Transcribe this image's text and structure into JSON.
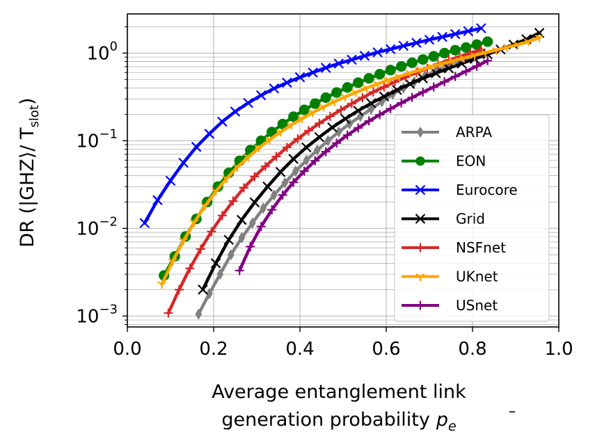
{
  "chart_data": {
    "type": "line",
    "xlabel_line1": "Average entanglement link",
    "xlabel_line2": "generation probability",
    "xlabel_symbol": "p",
    "xlabel_sub": "e",
    "ylabel_main": "DR (|GHZ⟩/ T",
    "ylabel_sub": "slot",
    "ylabel_close": ")",
    "y_scale": "log",
    "xlim": [
      0.0,
      1.0
    ],
    "ylim": [
      0.00075,
      2.8
    ],
    "x_ticks": [
      0.0,
      0.2,
      0.4,
      0.6,
      0.8,
      1.0
    ],
    "x_tick_labels": [
      "0.0",
      "0.2",
      "0.4",
      "0.6",
      "0.8",
      "1.0"
    ],
    "y_ticks": [
      0.001,
      0.01,
      0.1,
      1
    ],
    "y_tick_bases": [
      "10",
      "10",
      "10",
      "10"
    ],
    "y_tick_exps": [
      "−3",
      "−2",
      "−1",
      "0"
    ],
    "grid": true,
    "legend_position": "lower right",
    "series": [
      {
        "name": "ARPA",
        "color": "#808080",
        "marker": "diamond",
        "x": [
          0.165,
          0.19,
          0.215,
          0.24,
          0.265,
          0.29,
          0.315,
          0.34,
          0.365,
          0.39,
          0.415,
          0.44,
          0.465,
          0.49,
          0.515,
          0.54,
          0.565,
          0.59,
          0.615,
          0.64,
          0.665,
          0.69,
          0.715,
          0.74,
          0.765,
          0.79,
          0.815
        ],
        "y": [
          0.00105,
          0.0018,
          0.003,
          0.005,
          0.0078,
          0.0115,
          0.017,
          0.024,
          0.033,
          0.045,
          0.06,
          0.078,
          0.1,
          0.126,
          0.156,
          0.19,
          0.23,
          0.28,
          0.34,
          0.4,
          0.47,
          0.55,
          0.63,
          0.72,
          0.81,
          0.9,
          1.0
        ]
      },
      {
        "name": "EON",
        "color": "#008000",
        "marker": "circle",
        "x": [
          0.085,
          0.11,
          0.135,
          0.16,
          0.185,
          0.21,
          0.235,
          0.26,
          0.285,
          0.31,
          0.335,
          0.36,
          0.385,
          0.41,
          0.435,
          0.46,
          0.485,
          0.51,
          0.535,
          0.56,
          0.585,
          0.61,
          0.635,
          0.66,
          0.685,
          0.71,
          0.735,
          0.76,
          0.785,
          0.81,
          0.835
        ],
        "y": [
          0.0029,
          0.0048,
          0.0081,
          0.0128,
          0.02,
          0.03,
          0.043,
          0.059,
          0.078,
          0.1,
          0.126,
          0.155,
          0.188,
          0.225,
          0.265,
          0.31,
          0.355,
          0.405,
          0.46,
          0.515,
          0.575,
          0.64,
          0.705,
          0.775,
          0.845,
          0.92,
          1.0,
          1.08,
          1.16,
          1.25,
          1.35
        ]
      },
      {
        "name": "Eurocore",
        "color": "#0000ff",
        "marker": "x",
        "x": [
          0.04,
          0.07,
          0.1,
          0.13,
          0.16,
          0.19,
          0.22,
          0.25,
          0.28,
          0.31,
          0.34,
          0.37,
          0.4,
          0.43,
          0.46,
          0.49,
          0.52,
          0.55,
          0.58,
          0.61,
          0.64,
          0.67,
          0.7,
          0.73,
          0.76,
          0.79,
          0.82
        ],
        "y": [
          0.0115,
          0.021,
          0.035,
          0.056,
          0.085,
          0.12,
          0.165,
          0.215,
          0.27,
          0.33,
          0.395,
          0.46,
          0.53,
          0.6,
          0.68,
          0.76,
          0.84,
          0.93,
          1.02,
          1.11,
          1.21,
          1.31,
          1.42,
          1.53,
          1.65,
          1.78,
          1.92
        ]
      },
      {
        "name": "Grid",
        "color": "#000000",
        "marker": "x",
        "x": [
          0.175,
          0.205,
          0.235,
          0.265,
          0.295,
          0.325,
          0.355,
          0.385,
          0.415,
          0.445,
          0.475,
          0.505,
          0.535,
          0.565,
          0.595,
          0.625,
          0.655,
          0.685,
          0.715,
          0.745,
          0.775,
          0.805,
          0.835,
          0.865,
          0.895,
          0.925,
          0.955
        ],
        "y": [
          0.002,
          0.004,
          0.0074,
          0.0125,
          0.0198,
          0.03,
          0.044,
          0.062,
          0.084,
          0.11,
          0.142,
          0.178,
          0.22,
          0.268,
          0.32,
          0.38,
          0.445,
          0.515,
          0.59,
          0.67,
          0.76,
          0.86,
          0.97,
          1.1,
          1.25,
          1.44,
          1.7
        ]
      },
      {
        "name": "NSFnet",
        "color": "#d62728",
        "marker": "plus",
        "x": [
          0.095,
          0.12,
          0.145,
          0.17,
          0.195,
          0.22,
          0.245,
          0.27,
          0.295,
          0.32,
          0.345,
          0.37,
          0.395,
          0.42,
          0.445,
          0.47,
          0.495,
          0.52,
          0.545,
          0.57,
          0.595,
          0.62,
          0.645,
          0.67,
          0.695,
          0.72,
          0.745,
          0.77,
          0.795,
          0.82
        ],
        "y": [
          0.00108,
          0.002,
          0.0035,
          0.0058,
          0.0092,
          0.014,
          0.0205,
          0.029,
          0.039,
          0.051,
          0.066,
          0.084,
          0.105,
          0.13,
          0.158,
          0.19,
          0.225,
          0.265,
          0.31,
          0.36,
          0.41,
          0.47,
          0.53,
          0.6,
          0.67,
          0.75,
          0.83,
          0.91,
          1.0,
          1.1
        ]
      },
      {
        "name": "UKnet",
        "color": "#ffa500",
        "marker": "tri",
        "x": [
          0.08,
          0.105,
          0.13,
          0.155,
          0.18,
          0.205,
          0.23,
          0.255,
          0.28,
          0.305,
          0.33,
          0.355,
          0.38,
          0.405,
          0.43,
          0.455,
          0.48,
          0.505,
          0.53,
          0.555,
          0.58,
          0.605,
          0.63,
          0.655,
          0.68,
          0.705,
          0.73,
          0.755,
          0.78,
          0.805,
          0.83,
          0.855,
          0.88,
          0.905,
          0.93,
          0.955
        ],
        "y": [
          0.0023,
          0.0042,
          0.0072,
          0.0117,
          0.018,
          0.0265,
          0.037,
          0.05,
          0.065,
          0.083,
          0.103,
          0.126,
          0.151,
          0.179,
          0.21,
          0.243,
          0.279,
          0.317,
          0.357,
          0.4,
          0.445,
          0.492,
          0.541,
          0.592,
          0.645,
          0.7,
          0.757,
          0.816,
          0.878,
          0.942,
          1.01,
          1.08,
          1.16,
          1.25,
          1.35,
          1.5
        ]
      },
      {
        "name": "USnet",
        "color": "#800080",
        "marker": "plus",
        "x": [
          0.26,
          0.285,
          0.31,
          0.335,
          0.36,
          0.385,
          0.41,
          0.435,
          0.46,
          0.485,
          0.51,
          0.535,
          0.56,
          0.585,
          0.61,
          0.635,
          0.66,
          0.685,
          0.71,
          0.735,
          0.76,
          0.785,
          0.81,
          0.835
        ],
        "y": [
          0.0033,
          0.0062,
          0.0105,
          0.0163,
          0.024,
          0.0335,
          0.045,
          0.059,
          0.075,
          0.094,
          0.116,
          0.14,
          0.168,
          0.198,
          0.232,
          0.27,
          0.312,
          0.358,
          0.41,
          0.47,
          0.54,
          0.62,
          0.71,
          0.82
        ]
      }
    ]
  }
}
